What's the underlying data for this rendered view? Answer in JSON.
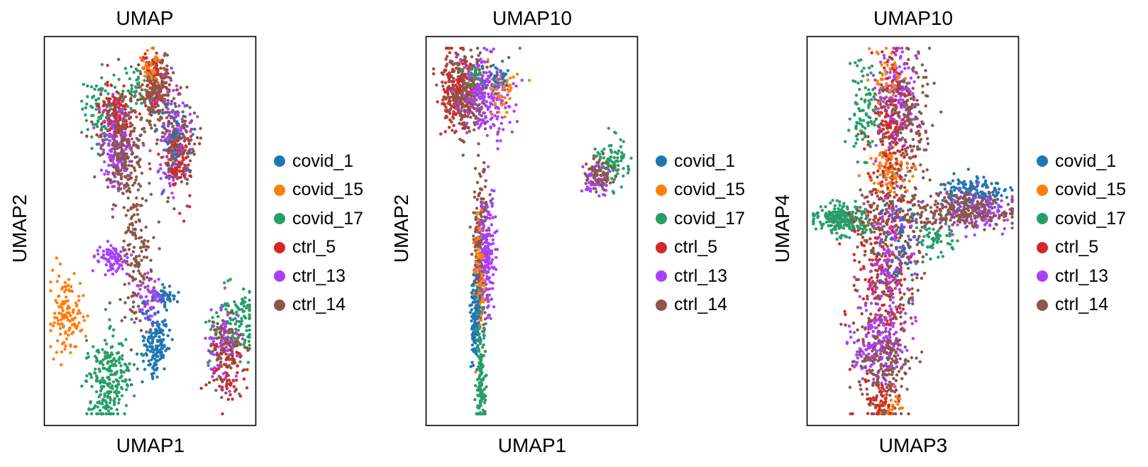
{
  "legend": [
    {
      "label": "covid_1",
      "color": "#1f77b4"
    },
    {
      "label": "covid_15",
      "color": "#ff7f0e"
    },
    {
      "label": "covid_17",
      "color": "#279e68"
    },
    {
      "label": "ctrl_5",
      "color": "#d62728"
    },
    {
      "label": "ctrl_13",
      "color": "#aa40fc"
    },
    {
      "label": "ctrl_14",
      "color": "#8c564b"
    }
  ],
  "chart_data": [
    {
      "type": "scatter",
      "title": "UMAP",
      "xlabel": "UMAP1",
      "ylabel": "UMAP2",
      "ticks": "none",
      "grid": false,
      "legend_position": "right",
      "clusters": [
        {
          "series": "covid_17",
          "cx": 0.29,
          "cy": 0.19,
          "sx": 0.055,
          "sy": 0.045,
          "n": 120
        },
        {
          "series": "ctrl_5",
          "cx": 0.34,
          "cy": 0.21,
          "sx": 0.04,
          "sy": 0.04,
          "n": 150
        },
        {
          "series": "ctrl_13",
          "cx": 0.34,
          "cy": 0.28,
          "sx": 0.04,
          "sy": 0.05,
          "n": 150
        },
        {
          "series": "ctrl_14",
          "cx": 0.38,
          "cy": 0.3,
          "sx": 0.05,
          "sy": 0.06,
          "n": 200
        },
        {
          "series": "ctrl_5",
          "cx": 0.52,
          "cy": 0.12,
          "sx": 0.03,
          "sy": 0.04,
          "n": 140
        },
        {
          "series": "ctrl_14",
          "cx": 0.53,
          "cy": 0.14,
          "sx": 0.035,
          "sy": 0.05,
          "n": 150
        },
        {
          "series": "covid_15",
          "cx": 0.5,
          "cy": 0.08,
          "sx": 0.02,
          "sy": 0.02,
          "n": 30
        },
        {
          "series": "covid_17",
          "cx": 0.43,
          "cy": 0.13,
          "sx": 0.03,
          "sy": 0.025,
          "n": 40
        },
        {
          "series": "ctrl_13",
          "cx": 0.62,
          "cy": 0.27,
          "sx": 0.04,
          "sy": 0.06,
          "n": 150
        },
        {
          "series": "ctrl_14",
          "cx": 0.63,
          "cy": 0.28,
          "sx": 0.04,
          "sy": 0.06,
          "n": 150
        },
        {
          "series": "ctrl_5",
          "cx": 0.63,
          "cy": 0.3,
          "sx": 0.035,
          "sy": 0.06,
          "n": 60
        },
        {
          "series": "covid_1",
          "cx": 0.62,
          "cy": 0.25,
          "sx": 0.04,
          "sy": 0.06,
          "n": 40
        },
        {
          "series": "ctrl_14",
          "cx": 0.43,
          "cy": 0.57,
          "sx": 0.04,
          "sy": 0.09,
          "n": 160
        },
        {
          "series": "ctrl_13",
          "cx": 0.32,
          "cy": 0.57,
          "sx": 0.035,
          "sy": 0.02,
          "n": 80
        },
        {
          "series": "ctrl_13",
          "cx": 0.5,
          "cy": 0.68,
          "sx": 0.03,
          "sy": 0.03,
          "n": 60
        },
        {
          "series": "covid_1",
          "cx": 0.53,
          "cy": 0.79,
          "sx": 0.035,
          "sy": 0.05,
          "n": 150
        },
        {
          "series": "covid_1",
          "cx": 0.58,
          "cy": 0.67,
          "sx": 0.02,
          "sy": 0.015,
          "n": 30
        },
        {
          "series": "covid_15",
          "cx": 0.1,
          "cy": 0.72,
          "sx": 0.04,
          "sy": 0.05,
          "n": 130
        },
        {
          "series": "covid_17",
          "cx": 0.3,
          "cy": 0.88,
          "sx": 0.05,
          "sy": 0.06,
          "n": 230
        },
        {
          "series": "covid_17",
          "cx": 0.9,
          "cy": 0.74,
          "sx": 0.06,
          "sy": 0.05,
          "n": 140
        },
        {
          "series": "ctrl_13",
          "cx": 0.85,
          "cy": 0.8,
          "sx": 0.04,
          "sy": 0.05,
          "n": 90
        },
        {
          "series": "ctrl_14",
          "cx": 0.86,
          "cy": 0.82,
          "sx": 0.04,
          "sy": 0.05,
          "n": 80
        },
        {
          "series": "ctrl_5",
          "cx": 0.86,
          "cy": 0.86,
          "sx": 0.04,
          "sy": 0.05,
          "n": 60
        }
      ]
    },
    {
      "type": "scatter",
      "title": "UMAP10",
      "xlabel": "UMAP1",
      "ylabel": "UMAP2",
      "ticks": "none",
      "grid": false,
      "legend_position": "right",
      "clusters": [
        {
          "series": "ctrl_5",
          "cx": 0.15,
          "cy": 0.14,
          "sx": 0.04,
          "sy": 0.05,
          "n": 200
        },
        {
          "series": "ctrl_14",
          "cx": 0.2,
          "cy": 0.14,
          "sx": 0.06,
          "sy": 0.05,
          "n": 280
        },
        {
          "series": "ctrl_13",
          "cx": 0.29,
          "cy": 0.15,
          "sx": 0.06,
          "sy": 0.05,
          "n": 200
        },
        {
          "series": "covid_15",
          "cx": 0.36,
          "cy": 0.14,
          "sx": 0.03,
          "sy": 0.03,
          "n": 50
        },
        {
          "series": "covid_1",
          "cx": 0.35,
          "cy": 0.1,
          "sx": 0.03,
          "sy": 0.02,
          "n": 30
        },
        {
          "series": "covid_17",
          "cx": 0.22,
          "cy": 0.1,
          "sx": 0.03,
          "sy": 0.02,
          "n": 20
        },
        {
          "series": "covid_17",
          "cx": 0.88,
          "cy": 0.32,
          "sx": 0.04,
          "sy": 0.03,
          "n": 90
        },
        {
          "series": "ctrl_13",
          "cx": 0.8,
          "cy": 0.37,
          "sx": 0.03,
          "sy": 0.02,
          "n": 60
        },
        {
          "series": "ctrl_14",
          "cx": 0.82,
          "cy": 0.35,
          "sx": 0.03,
          "sy": 0.02,
          "n": 70
        },
        {
          "series": "ctrl_14",
          "cx": 0.26,
          "cy": 0.55,
          "sx": 0.02,
          "sy": 0.09,
          "n": 230
        },
        {
          "series": "ctrl_13",
          "cx": 0.29,
          "cy": 0.57,
          "sx": 0.02,
          "sy": 0.08,
          "n": 160
        },
        {
          "series": "covid_15",
          "cx": 0.25,
          "cy": 0.62,
          "sx": 0.012,
          "sy": 0.08,
          "n": 80
        },
        {
          "series": "covid_1",
          "cx": 0.23,
          "cy": 0.72,
          "sx": 0.012,
          "sy": 0.045,
          "n": 120
        },
        {
          "series": "covid_17",
          "cx": 0.26,
          "cy": 0.88,
          "sx": 0.012,
          "sy": 0.07,
          "n": 140
        }
      ]
    },
    {
      "type": "scatter",
      "title": "UMAP10",
      "xlabel": "UMAP3",
      "ylabel": "UMAP4",
      "ticks": "none",
      "grid": false,
      "legend_position": "right",
      "clusters": [
        {
          "series": "ctrl_13",
          "cx": 0.43,
          "cy": 0.17,
          "sx": 0.05,
          "sy": 0.07,
          "n": 200
        },
        {
          "series": "ctrl_14",
          "cx": 0.47,
          "cy": 0.2,
          "sx": 0.06,
          "sy": 0.08,
          "n": 200
        },
        {
          "series": "ctrl_5",
          "cx": 0.39,
          "cy": 0.22,
          "sx": 0.04,
          "sy": 0.09,
          "n": 120
        },
        {
          "series": "covid_15",
          "cx": 0.38,
          "cy": 0.1,
          "sx": 0.04,
          "sy": 0.04,
          "n": 40
        },
        {
          "series": "covid_17",
          "cx": 0.27,
          "cy": 0.18,
          "sx": 0.04,
          "sy": 0.06,
          "n": 100
        },
        {
          "series": "covid_15",
          "cx": 0.4,
          "cy": 0.35,
          "sx": 0.05,
          "sy": 0.03,
          "n": 90
        },
        {
          "series": "covid_1",
          "cx": 0.79,
          "cy": 0.4,
          "sx": 0.08,
          "sy": 0.02,
          "n": 150
        },
        {
          "series": "ctrl_13",
          "cx": 0.8,
          "cy": 0.45,
          "sx": 0.1,
          "sy": 0.025,
          "n": 140
        },
        {
          "series": "ctrl_14",
          "cx": 0.7,
          "cy": 0.45,
          "sx": 0.14,
          "sy": 0.025,
          "n": 260
        },
        {
          "series": "covid_17",
          "cx": 0.61,
          "cy": 0.52,
          "sx": 0.04,
          "sy": 0.02,
          "n": 60
        },
        {
          "series": "covid_17",
          "cx": 0.17,
          "cy": 0.47,
          "sx": 0.07,
          "sy": 0.02,
          "n": 250
        },
        {
          "series": "ctrl_5",
          "cx": 0.35,
          "cy": 0.58,
          "sx": 0.07,
          "sy": 0.12,
          "n": 260
        },
        {
          "series": "ctrl_14",
          "cx": 0.4,
          "cy": 0.55,
          "sx": 0.07,
          "sy": 0.12,
          "n": 220
        },
        {
          "series": "ctrl_13",
          "cx": 0.4,
          "cy": 0.6,
          "sx": 0.06,
          "sy": 0.1,
          "n": 130
        },
        {
          "series": "covid_1",
          "cx": 0.44,
          "cy": 0.52,
          "sx": 0.05,
          "sy": 0.07,
          "n": 50
        },
        {
          "series": "ctrl_13",
          "cx": 0.33,
          "cy": 0.79,
          "sx": 0.06,
          "sy": 0.05,
          "n": 180
        },
        {
          "series": "ctrl_14",
          "cx": 0.36,
          "cy": 0.86,
          "sx": 0.06,
          "sy": 0.08,
          "n": 200
        },
        {
          "series": "covid_15",
          "cx": 0.4,
          "cy": 0.95,
          "sx": 0.03,
          "sy": 0.02,
          "n": 30
        },
        {
          "series": "ctrl_5",
          "cx": 0.35,
          "cy": 0.93,
          "sx": 0.04,
          "sy": 0.03,
          "n": 40
        }
      ]
    }
  ]
}
